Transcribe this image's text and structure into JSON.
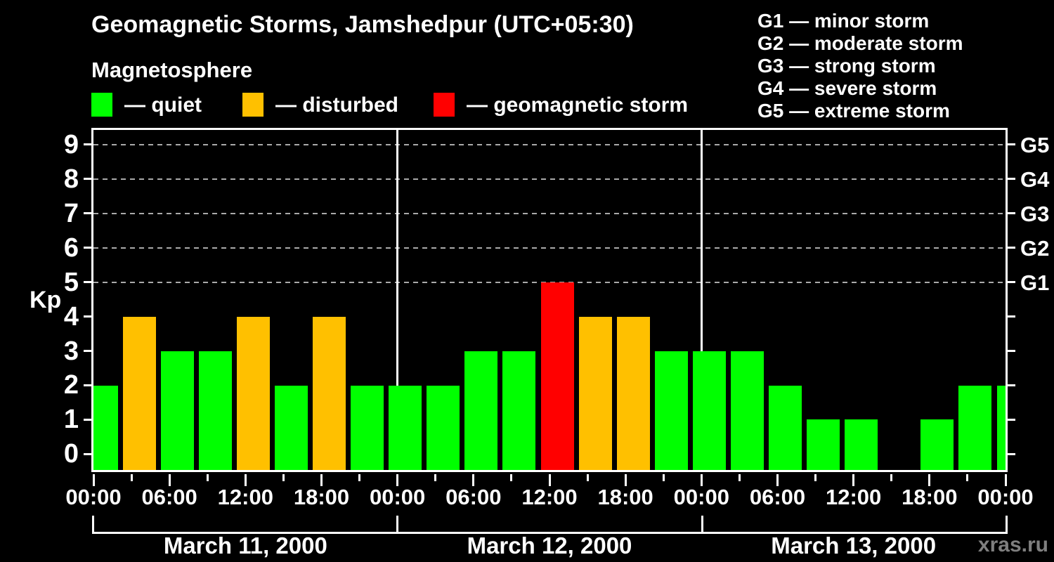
{
  "title": "Geomagnetic Storms, Jamshedpur (UTC+05:30)",
  "legend": {
    "heading": "Magnetosphere",
    "items": [
      {
        "name": "quiet",
        "label": "— quiet",
        "color": "#00ff00"
      },
      {
        "name": "disturbed",
        "label": "— disturbed",
        "color": "#ffc000"
      },
      {
        "name": "storm",
        "label": "— geomagnetic storm",
        "color": "#ff0000"
      }
    ]
  },
  "g_scale_legend": [
    "G1 — minor storm",
    "G2 — moderate storm",
    "G3 — strong storm",
    "G4 — severe storm",
    "G5 — extreme storm"
  ],
  "watermark": "xras.ru",
  "chart_data": {
    "type": "bar",
    "ylabel": "Kp",
    "y_ticks": [
      0,
      1,
      2,
      3,
      4,
      5,
      6,
      7,
      8,
      9
    ],
    "ylim": [
      -0.46,
      9.42
    ],
    "gridlines_at_kp": [
      5,
      6,
      7,
      8,
      9
    ],
    "right_axis_labels": [
      {
        "kp": 5,
        "label": "G1"
      },
      {
        "kp": 6,
        "label": "G2"
      },
      {
        "kp": 7,
        "label": "G3"
      },
      {
        "kp": 8,
        "label": "G4"
      },
      {
        "kp": 9,
        "label": "G5"
      }
    ],
    "x_major_tick_labels": [
      "00:00",
      "06:00",
      "12:00",
      "18:00",
      "00:00",
      "06:00",
      "12:00",
      "18:00",
      "00:00",
      "06:00",
      "12:00",
      "18:00",
      "00:00"
    ],
    "hours_per_bar": 3,
    "days": [
      {
        "date": "March 11, 2000",
        "kp_values": [
          2,
          4,
          3,
          3,
          4,
          2,
          4,
          2
        ]
      },
      {
        "date": "March 12, 2000",
        "kp_values": [
          2,
          2,
          3,
          3,
          5,
          4,
          4,
          3
        ]
      },
      {
        "date": "March 13, 2000",
        "kp_values": [
          3,
          3,
          2,
          1,
          1,
          0,
          1,
          2
        ]
      }
    ],
    "next_period_edge_value": 2,
    "color_rules": {
      "quiet_max_kp": 3,
      "disturbed_kp": 4,
      "storm_min_kp": 5
    },
    "colors": {
      "quiet": "#00ff00",
      "disturbed": "#ffc000",
      "storm": "#ff0000",
      "axis": "#ffffff",
      "grid": "#aaaaaa",
      "background": "#000000",
      "watermark": "#7f7f7f"
    }
  }
}
